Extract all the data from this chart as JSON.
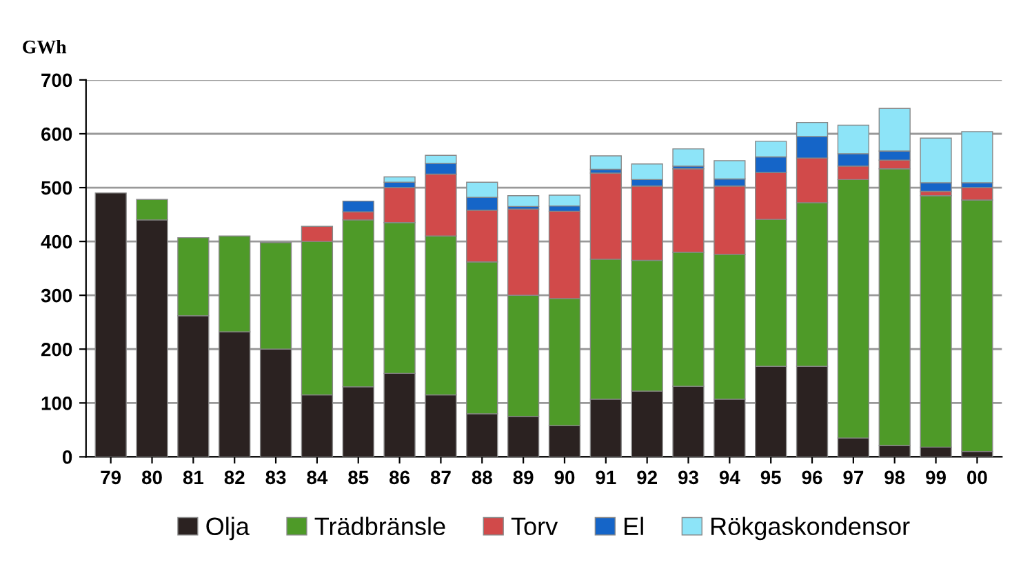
{
  "chart_data": {
    "type": "bar",
    "stacked": true,
    "ylabel": "GWh",
    "categories": [
      "79",
      "80",
      "81",
      "82",
      "83",
      "84",
      "85",
      "86",
      "87",
      "88",
      "89",
      "90",
      "91",
      "92",
      "93",
      "94",
      "95",
      "96",
      "97",
      "98",
      "99",
      "00"
    ],
    "series": [
      {
        "name": "Olja",
        "color": "#2b2221",
        "values": [
          490,
          440,
          262,
          232,
          200,
          115,
          130,
          155,
          115,
          80,
          75,
          58,
          107,
          122,
          131,
          107,
          168,
          168,
          35,
          21,
          18,
          10
        ]
      },
      {
        "name": "Trädbränsle",
        "color": "#4e9a28",
        "values": [
          null,
          38,
          145,
          178,
          198,
          285,
          310,
          280,
          295,
          282,
          225,
          236,
          260,
          243,
          249,
          269,
          273,
          304,
          480,
          514,
          467,
          467
        ]
      },
      {
        "name": "Torv",
        "color": "#d14a4a",
        "values": [
          null,
          null,
          null,
          null,
          null,
          28,
          15,
          65,
          115,
          96,
          160,
          162,
          160,
          138,
          155,
          127,
          87,
          83,
          25,
          16,
          8,
          23
        ]
      },
      {
        "name": "El",
        "color": "#1565c8",
        "values": [
          null,
          null,
          null,
          null,
          null,
          null,
          20,
          10,
          20,
          24,
          5,
          10,
          7,
          12,
          5,
          13,
          29,
          40,
          23,
          17,
          16,
          9
        ]
      },
      {
        "name": "Rökgaskondensor",
        "color": "#8de4f8",
        "values": [
          null,
          null,
          null,
          null,
          null,
          null,
          null,
          10,
          15,
          28,
          20,
          20,
          25,
          29,
          32,
          34,
          29,
          26,
          53,
          79,
          83,
          95
        ]
      }
    ],
    "ylim": [
      0,
      700
    ],
    "yticks": [
      0,
      100,
      200,
      300,
      400,
      500,
      600,
      700
    ],
    "grid": "y",
    "legend": "bottom"
  }
}
